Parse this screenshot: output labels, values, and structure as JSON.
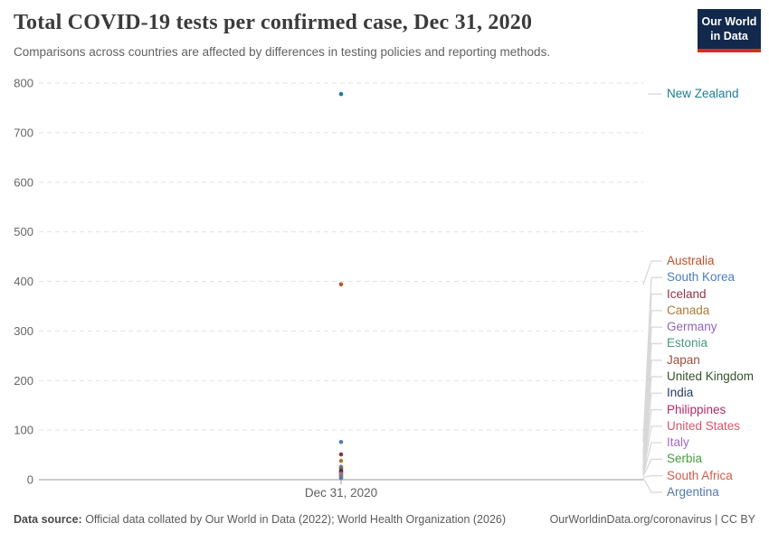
{
  "header": {
    "title": "Total COVID-19 tests per confirmed case, Dec 31, 2020",
    "subtitle": "Comparisons across countries are affected by differences in testing policies and reporting methods.",
    "logo": {
      "line1": "Our World",
      "line2": "in Data",
      "bg_color": "#12294d",
      "stripe_color": "#dc2a20"
    }
  },
  "chart_data": {
    "type": "scatter",
    "title": "Total COVID-19 tests per confirmed case, Dec 31, 2020",
    "x_label": "Dec 31, 2020",
    "ylabel": "",
    "ylim": [
      0,
      800
    ],
    "y_ticks": [
      0,
      100,
      200,
      300,
      400,
      500,
      600,
      700,
      800
    ],
    "grid": "horizontal dashed",
    "legend_position": "right-entity-labels",
    "x": [
      "Dec 31, 2020"
    ],
    "series": [
      {
        "name": "New Zealand",
        "value": 778,
        "color": "#1f7d93"
      },
      {
        "name": "Australia",
        "value": 394,
        "color": "#c0512a"
      },
      {
        "name": "South Korea",
        "value": 76,
        "color": "#4c7dc0"
      },
      {
        "name": "Iceland",
        "value": 51,
        "color": "#8e3442"
      },
      {
        "name": "Canada",
        "value": 38,
        "color": "#ae7936"
      },
      {
        "name": "Germany",
        "value": 26,
        "color": "#9065b5"
      },
      {
        "name": "Estonia",
        "value": 24,
        "color": "#45997d"
      },
      {
        "name": "Japan",
        "value": 21,
        "color": "#9e4e3c"
      },
      {
        "name": "United Kingdom",
        "value": 18,
        "color": "#345228"
      },
      {
        "name": "India",
        "value": 16,
        "color": "#243a63"
      },
      {
        "name": "Philippines",
        "value": 13,
        "color": "#b02a6b"
      },
      {
        "name": "United States",
        "value": 11,
        "color": "#d9546a"
      },
      {
        "name": "Italy",
        "value": 9,
        "color": "#a169c6"
      },
      {
        "name": "Serbia",
        "value": 7.5,
        "color": "#44a13d"
      },
      {
        "name": "South Africa",
        "value": 5,
        "color": "#cd5e4b"
      },
      {
        "name": "Argentina",
        "value": 3.5,
        "color": "#5378ad"
      }
    ]
  },
  "footer": {
    "source_label": "Data source:",
    "source_text": " Official data collated by Our World in Data (2022); World Health Organization (2026)",
    "link": "OurWorldinData.org/coronavirus",
    "license": " | CC BY"
  }
}
